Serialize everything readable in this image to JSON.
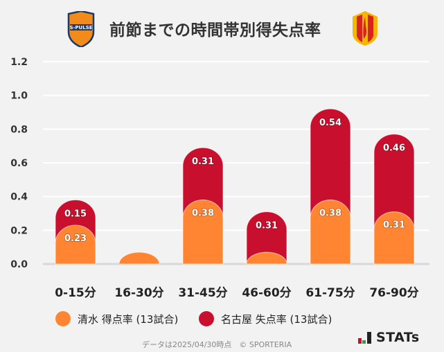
{
  "title": "前節までの時間帯別得失点率",
  "logos": {
    "home": "S-PULSE",
    "away": "Nagoya Grampus crest"
  },
  "chart_data": {
    "type": "bar",
    "stacked": true,
    "categories": [
      "0-15分",
      "16-30分",
      "31-45分",
      "46-60分",
      "61-75分",
      "76-90分"
    ],
    "series": [
      {
        "name": "清水 得点率 (13試合)",
        "color": "#ff8533",
        "values": [
          0.23,
          0,
          0.38,
          0,
          0.38,
          0.31
        ]
      },
      {
        "name": "名古屋 失点率 (13試合)",
        "color": "#c8102e",
        "values": [
          0.15,
          0,
          0.31,
          0.31,
          0.54,
          0.46
        ]
      }
    ],
    "yticks": [
      "0.0",
      "0.2",
      "0.4",
      "0.6",
      "0.8",
      "1.0",
      "1.2"
    ],
    "ylim": [
      0,
      1.2
    ],
    "grid": true,
    "legend": "bottom"
  },
  "footer": "データは2025/04/30時点　© SPORTERIA",
  "brand": "STATs"
}
